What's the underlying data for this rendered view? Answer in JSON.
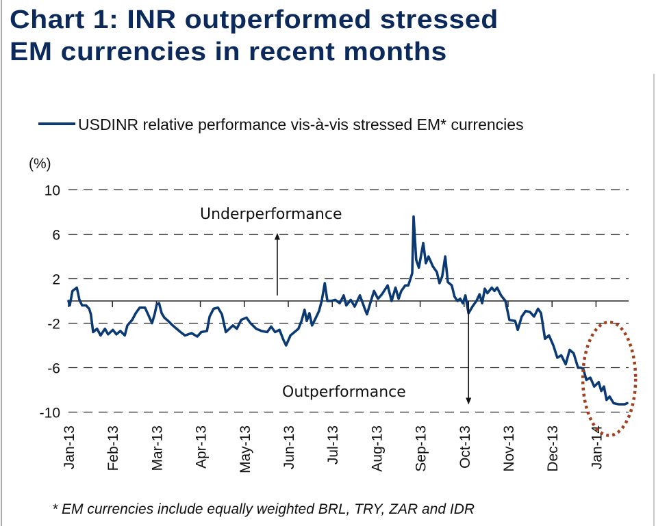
{
  "title_lines": [
    "Chart 1: INR outperformed stressed",
    "EM currencies in recent months"
  ],
  "footnote": "* EM currencies include equally weighted BRL, TRY, ZAR and IDR",
  "colors": {
    "title": "#0b2a5b",
    "series": "#0b3a73",
    "highlight_ellipse": "#a0401f",
    "grid": "#222222"
  },
  "chart_data": {
    "type": "line",
    "title": "Chart 1: INR outperformed stressed EM currencies in recent months",
    "ylabel": "(%)",
    "xlabel": "",
    "ylim": [
      -10,
      10
    ],
    "yticks": [
      10,
      6,
      2,
      -2,
      -6,
      -10
    ],
    "grid": "horizontal-dashed",
    "legend_position": "top",
    "legend": [
      "USDINR relative performance vis-à-vis stressed EM* currencies"
    ],
    "x_tick_labels": [
      "Jan-13",
      "Feb-13",
      "Mar-13",
      "Apr-13",
      "May-13",
      "Jun-13",
      "Jul-13",
      "Aug-13",
      "Sep-13",
      "Oct-13",
      "Nov-13",
      "Dec-13",
      "Jan-14"
    ],
    "x_unit": "months since Jan-13",
    "annotations": [
      {
        "text": "Underperformance",
        "arrow": "up",
        "x": 4.75,
        "y_from": 0,
        "y_to": 6
      },
      {
        "text": "Outperformance",
        "arrow": "down",
        "x": 9.1,
        "y_from": 0,
        "y_to": -9.2
      },
      {
        "type": "ellipse-highlight",
        "x_center": 12.3,
        "y_center": -7.0,
        "x_halfwidth": 0.6,
        "y_halfheight": 5.1
      }
    ],
    "series": [
      {
        "name": "USDINR relative performance vis-à-vis stressed EM* currencies",
        "points": [
          [
            0.0,
            0.0
          ],
          [
            0.03,
            -0.4
          ],
          [
            0.09,
            0.9
          ],
          [
            0.19,
            1.2
          ],
          [
            0.25,
            0.1
          ],
          [
            0.31,
            -0.4
          ],
          [
            0.4,
            -0.4
          ],
          [
            0.47,
            -0.7
          ],
          [
            0.51,
            -1.2
          ],
          [
            0.56,
            -2.8
          ],
          [
            0.65,
            -2.5
          ],
          [
            0.73,
            -3.1
          ],
          [
            0.83,
            -2.5
          ],
          [
            0.9,
            -3.0
          ],
          [
            1.01,
            -2.6
          ],
          [
            1.09,
            -3.0
          ],
          [
            1.18,
            -2.7
          ],
          [
            1.28,
            -3.1
          ],
          [
            1.34,
            -2.2
          ],
          [
            1.45,
            -1.7
          ],
          [
            1.53,
            -1.1
          ],
          [
            1.62,
            -0.6
          ],
          [
            1.74,
            -0.6
          ],
          [
            1.81,
            -1.2
          ],
          [
            1.9,
            -2.0
          ],
          [
            1.96,
            -1.2
          ],
          [
            2.01,
            -0.3
          ],
          [
            2.06,
            -0.2
          ],
          [
            2.12,
            -1.1
          ],
          [
            2.18,
            -1.5
          ],
          [
            2.27,
            -1.8
          ],
          [
            2.37,
            -2.2
          ],
          [
            2.46,
            -2.5
          ],
          [
            2.55,
            -2.8
          ],
          [
            2.65,
            -3.1
          ],
          [
            2.8,
            -2.9
          ],
          [
            2.93,
            -3.2
          ],
          [
            3.02,
            -2.8
          ],
          [
            3.15,
            -2.7
          ],
          [
            3.21,
            -1.4
          ],
          [
            3.3,
            -0.7
          ],
          [
            3.4,
            -0.6
          ],
          [
            3.49,
            -1.2
          ],
          [
            3.58,
            -2.8
          ],
          [
            3.74,
            -2.2
          ],
          [
            3.83,
            -2.5
          ],
          [
            3.93,
            -1.7
          ],
          [
            4.05,
            -1.5
          ],
          [
            4.14,
            -2.0
          ],
          [
            4.27,
            -2.5
          ],
          [
            4.39,
            -2.7
          ],
          [
            4.52,
            -2.8
          ],
          [
            4.61,
            -2.3
          ],
          [
            4.7,
            -2.8
          ],
          [
            4.8,
            -2.6
          ],
          [
            4.89,
            -3.5
          ],
          [
            4.95,
            -4.0
          ],
          [
            5.05,
            -3.1
          ],
          [
            5.14,
            -2.8
          ],
          [
            5.23,
            -2.5
          ],
          [
            5.3,
            -1.8
          ],
          [
            5.37,
            -0.8
          ],
          [
            5.42,
            -1.8
          ],
          [
            5.48,
            -1.1
          ],
          [
            5.54,
            -2.2
          ],
          [
            5.64,
            -1.4
          ],
          [
            5.7,
            -0.9
          ],
          [
            5.76,
            0.0
          ],
          [
            5.83,
            1.6
          ],
          [
            5.89,
            0.0
          ],
          [
            5.98,
            0.0
          ],
          [
            6.07,
            0.1
          ],
          [
            6.17,
            -0.2
          ],
          [
            6.26,
            0.5
          ],
          [
            6.32,
            -0.4
          ],
          [
            6.42,
            0.1
          ],
          [
            6.51,
            -0.5
          ],
          [
            6.63,
            0.5
          ],
          [
            6.73,
            -0.6
          ],
          [
            6.79,
            -1.2
          ],
          [
            6.88,
            0.0
          ],
          [
            6.95,
            0.9
          ],
          [
            7.04,
            0.2
          ],
          [
            7.13,
            0.6
          ],
          [
            7.26,
            1.4
          ],
          [
            7.35,
            0.0
          ],
          [
            7.44,
            1.2
          ],
          [
            7.51,
            0.2
          ],
          [
            7.57,
            0.9
          ],
          [
            7.66,
            1.4
          ],
          [
            7.73,
            1.4
          ],
          [
            7.82,
            2.5
          ],
          [
            7.85,
            7.6
          ],
          [
            7.91,
            3.7
          ],
          [
            7.97,
            3.0
          ],
          [
            8.07,
            5.2
          ],
          [
            8.13,
            3.4
          ],
          [
            8.19,
            4.0
          ],
          [
            8.29,
            3.1
          ],
          [
            8.38,
            2.6
          ],
          [
            8.44,
            1.6
          ],
          [
            8.5,
            2.2
          ],
          [
            8.57,
            4.0
          ],
          [
            8.63,
            1.7
          ],
          [
            8.72,
            1.4
          ],
          [
            8.78,
            0.4
          ],
          [
            8.85,
            0.0
          ],
          [
            8.91,
            0.2
          ],
          [
            8.97,
            -0.2
          ],
          [
            9.03,
            0.5
          ],
          [
            9.1,
            -1.1
          ],
          [
            9.19,
            -0.5
          ],
          [
            9.28,
            0.0
          ],
          [
            9.35,
            0.6
          ],
          [
            9.41,
            -0.2
          ],
          [
            9.47,
            1.1
          ],
          [
            9.53,
            0.7
          ],
          [
            9.63,
            1.2
          ],
          [
            9.69,
            0.9
          ],
          [
            9.75,
            1.2
          ],
          [
            9.84,
            0.5
          ],
          [
            9.94,
            0.0
          ],
          [
            10.03,
            -1.7
          ],
          [
            10.16,
            -1.8
          ],
          [
            10.22,
            -2.6
          ],
          [
            10.31,
            -1.4
          ],
          [
            10.4,
            -0.9
          ],
          [
            10.5,
            -1.0
          ],
          [
            10.59,
            -1.4
          ],
          [
            10.68,
            -0.7
          ],
          [
            10.75,
            -1.1
          ],
          [
            10.84,
            -3.4
          ],
          [
            10.93,
            -3.1
          ],
          [
            11.03,
            -4.0
          ],
          [
            11.12,
            -5.1
          ],
          [
            11.21,
            -4.9
          ],
          [
            11.31,
            -5.7
          ],
          [
            11.4,
            -4.4
          ],
          [
            11.49,
            -4.7
          ],
          [
            11.59,
            -6.0
          ],
          [
            11.65,
            -6.0
          ],
          [
            11.71,
            -6.1
          ],
          [
            11.78,
            -7.1
          ],
          [
            11.87,
            -6.9
          ],
          [
            11.96,
            -7.7
          ],
          [
            12.06,
            -7.3
          ],
          [
            12.12,
            -8.1
          ],
          [
            12.18,
            -7.7
          ],
          [
            12.24,
            -8.9
          ],
          [
            12.31,
            -8.6
          ],
          [
            12.4,
            -9.2
          ],
          [
            12.52,
            -9.3
          ],
          [
            12.65,
            -9.3
          ],
          [
            12.71,
            -9.2
          ]
        ]
      }
    ]
  }
}
